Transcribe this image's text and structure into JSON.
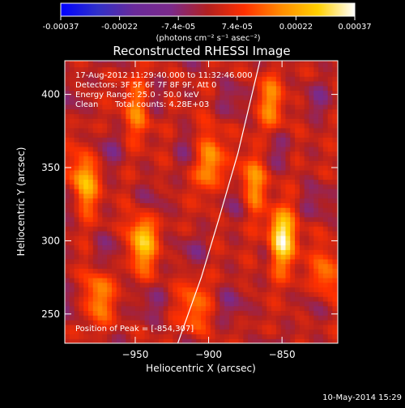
{
  "chart_data": {
    "type": "heatmap",
    "title": "Reconstructed RHESSI Image",
    "xlabel": "Heliocentric X (arcsec)",
    "ylabel": "Heliocentric Y (arcsec)",
    "xlim": [
      -998,
      -812
    ],
    "ylim": [
      230,
      423
    ],
    "x_ticks": [
      -950,
      -900,
      -850
    ],
    "y_ticks": [
      250,
      300,
      350,
      400
    ],
    "colorbar": {
      "range": [
        -0.00037,
        0.00037
      ],
      "tick_labels": [
        "-0.00037",
        "-0.00022",
        "-7.4e-05",
        "7.4e-05",
        "0.00022",
        "0.00037"
      ],
      "unit_label": "(photons cm⁻² s⁻¹ asec⁻²)",
      "colors": [
        "#0000ff",
        "#3030c8",
        "#6a2a9a",
        "#7b2a8a",
        "#b22020",
        "#ff3000",
        "#ff8c00",
        "#ffd000",
        "#ffffff"
      ]
    },
    "annotations": {
      "time_range": "17-Aug-2012 11:29:40.000 to 11:32:46.000",
      "detectors": "Detectors: 3F 5F 6F 7F 8F 9F, Att 0",
      "energy_range": "Energy Range: 25.0 - 50.0 keV",
      "algorithm": "Clean",
      "total_counts": "Total counts: 4.28E+03",
      "peak_position": "Position of Peak = [-854,307]"
    },
    "peak": {
      "x": -854,
      "y": 307
    },
    "sources": [
      {
        "x": -850,
        "y": 300,
        "amplitude": 0.00037
      },
      {
        "x": -945,
        "y": 300,
        "amplitude": 0.00026
      },
      {
        "x": -985,
        "y": 340,
        "amplitude": 0.00024
      },
      {
        "x": -900,
        "y": 355,
        "amplitude": 0.00022
      },
      {
        "x": -948,
        "y": 392,
        "amplitude": 0.00018
      },
      {
        "x": -858,
        "y": 395,
        "amplitude": 0.00016
      },
      {
        "x": -975,
        "y": 262,
        "amplitude": 0.00018
      },
      {
        "x": -910,
        "y": 255,
        "amplitude": 0.00015
      },
      {
        "x": -870,
        "y": 340,
        "amplitude": 0.00018
      },
      {
        "x": -820,
        "y": 275,
        "amplitude": 0.00016
      }
    ],
    "limb_curve": [
      {
        "x": -921,
        "y": 230
      },
      {
        "x": -905,
        "y": 275
      },
      {
        "x": -893,
        "y": 315
      },
      {
        "x": -880,
        "y": 360
      },
      {
        "x": -865,
        "y": 423
      }
    ]
  },
  "footer": {
    "timestamp": "10-May-2014 15:29"
  }
}
